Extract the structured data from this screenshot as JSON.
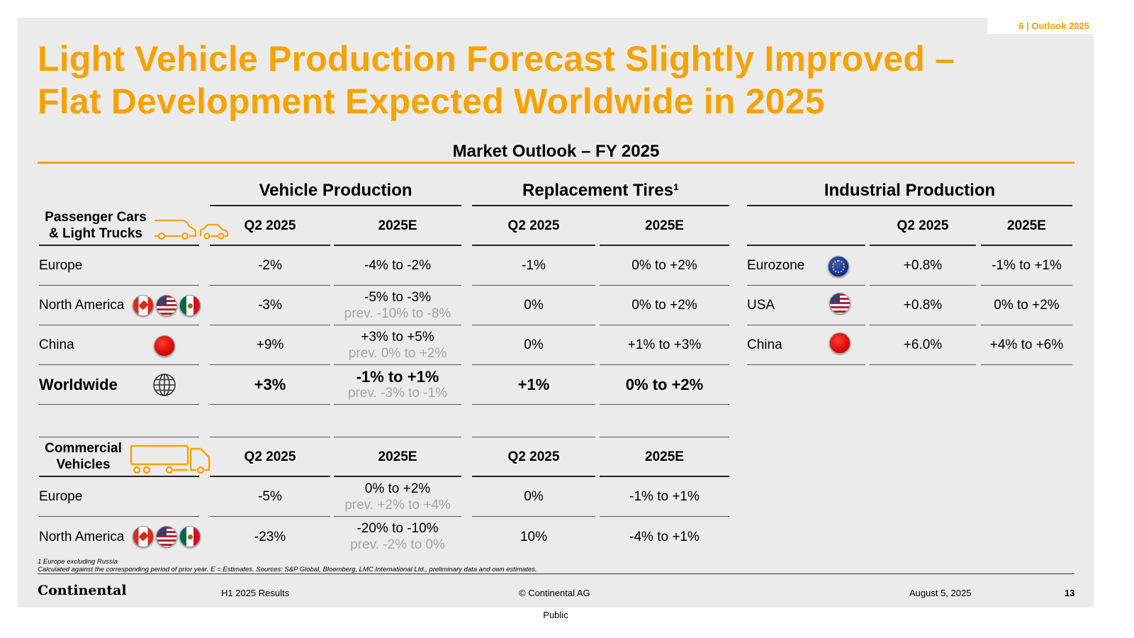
{
  "slide_tag": "6 | Outlook 2025",
  "title_line1": "Light Vehicle Production Forecast Slightly Improved –",
  "title_line2": "Flat Development Expected Worldwide in 2025",
  "subtitle": "Market Outlook – FY 2025",
  "headers": {
    "vehicle_production": "Vehicle Production",
    "replacement_tires": "Replacement Tires¹",
    "industrial_production": "Industrial Production",
    "q2": "Q2 2025",
    "fy": "2025E"
  },
  "passenger": {
    "label": "Passenger Cars & Light Trucks",
    "rows": [
      {
        "region": "Europe",
        "vp_q2": "-2%",
        "vp_fy": "-4% to -2%",
        "vp_prev": "",
        "rt_q2": "-1%",
        "rt_fy": "0% to +2%"
      },
      {
        "region": "North America",
        "vp_q2": "-3%",
        "vp_fy": "-5% to -3%",
        "vp_prev": "prev. -10% to -8%",
        "rt_q2": "0%",
        "rt_fy": "0% to +2%"
      },
      {
        "region": "China",
        "vp_q2": "+9%",
        "vp_fy": "+3% to +5%",
        "vp_prev": "prev. 0% to +2%",
        "rt_q2": "0%",
        "rt_fy": "+1% to +3%"
      },
      {
        "region": "Worldwide",
        "vp_q2": "+3%",
        "vp_fy": "-1% to +1%",
        "vp_prev": "prev. -3% to -1%",
        "rt_q2": "+1%",
        "rt_fy": "0% to +2%"
      }
    ]
  },
  "commercial": {
    "label": "Commercial Vehicles",
    "rows": [
      {
        "region": "Europe",
        "vp_q2": "-5%",
        "vp_fy": "0% to +2%",
        "vp_prev": "prev. +2% to +4%",
        "rt_q2": "0%",
        "rt_fy": "-1% to +1%"
      },
      {
        "region": "North America",
        "vp_q2": "-23%",
        "vp_fy": "-20% to -10%",
        "vp_prev": "prev. -2% to 0%",
        "rt_q2": "10%",
        "rt_fy": "-4% to +1%"
      }
    ]
  },
  "industrial": {
    "rows": [
      {
        "region": "Eurozone",
        "q2": "+0.8%",
        "fy": "-1% to +1%"
      },
      {
        "region": "USA",
        "q2": "+0.8%",
        "fy": "0% to +2%"
      },
      {
        "region": "China",
        "q2": "+6.0%",
        "fy": "+4% to +6%"
      }
    ]
  },
  "footnote1": "1 Europe excluding Russia",
  "footnote2": "Calculated against the corresponding period of prior year. E = Estimates. Sources: S&P Global, Bloomberg, LMC International Ltd.,  preliminary data and own estimates.",
  "footer": {
    "logo": "Continental",
    "event": "H1 2025 Results",
    "copyright": "© Continental AG",
    "date": "August 5, 2025",
    "page": "13",
    "classification": "Public"
  },
  "colors": {
    "accent": "#f5a300",
    "background": "#ebebeb"
  }
}
